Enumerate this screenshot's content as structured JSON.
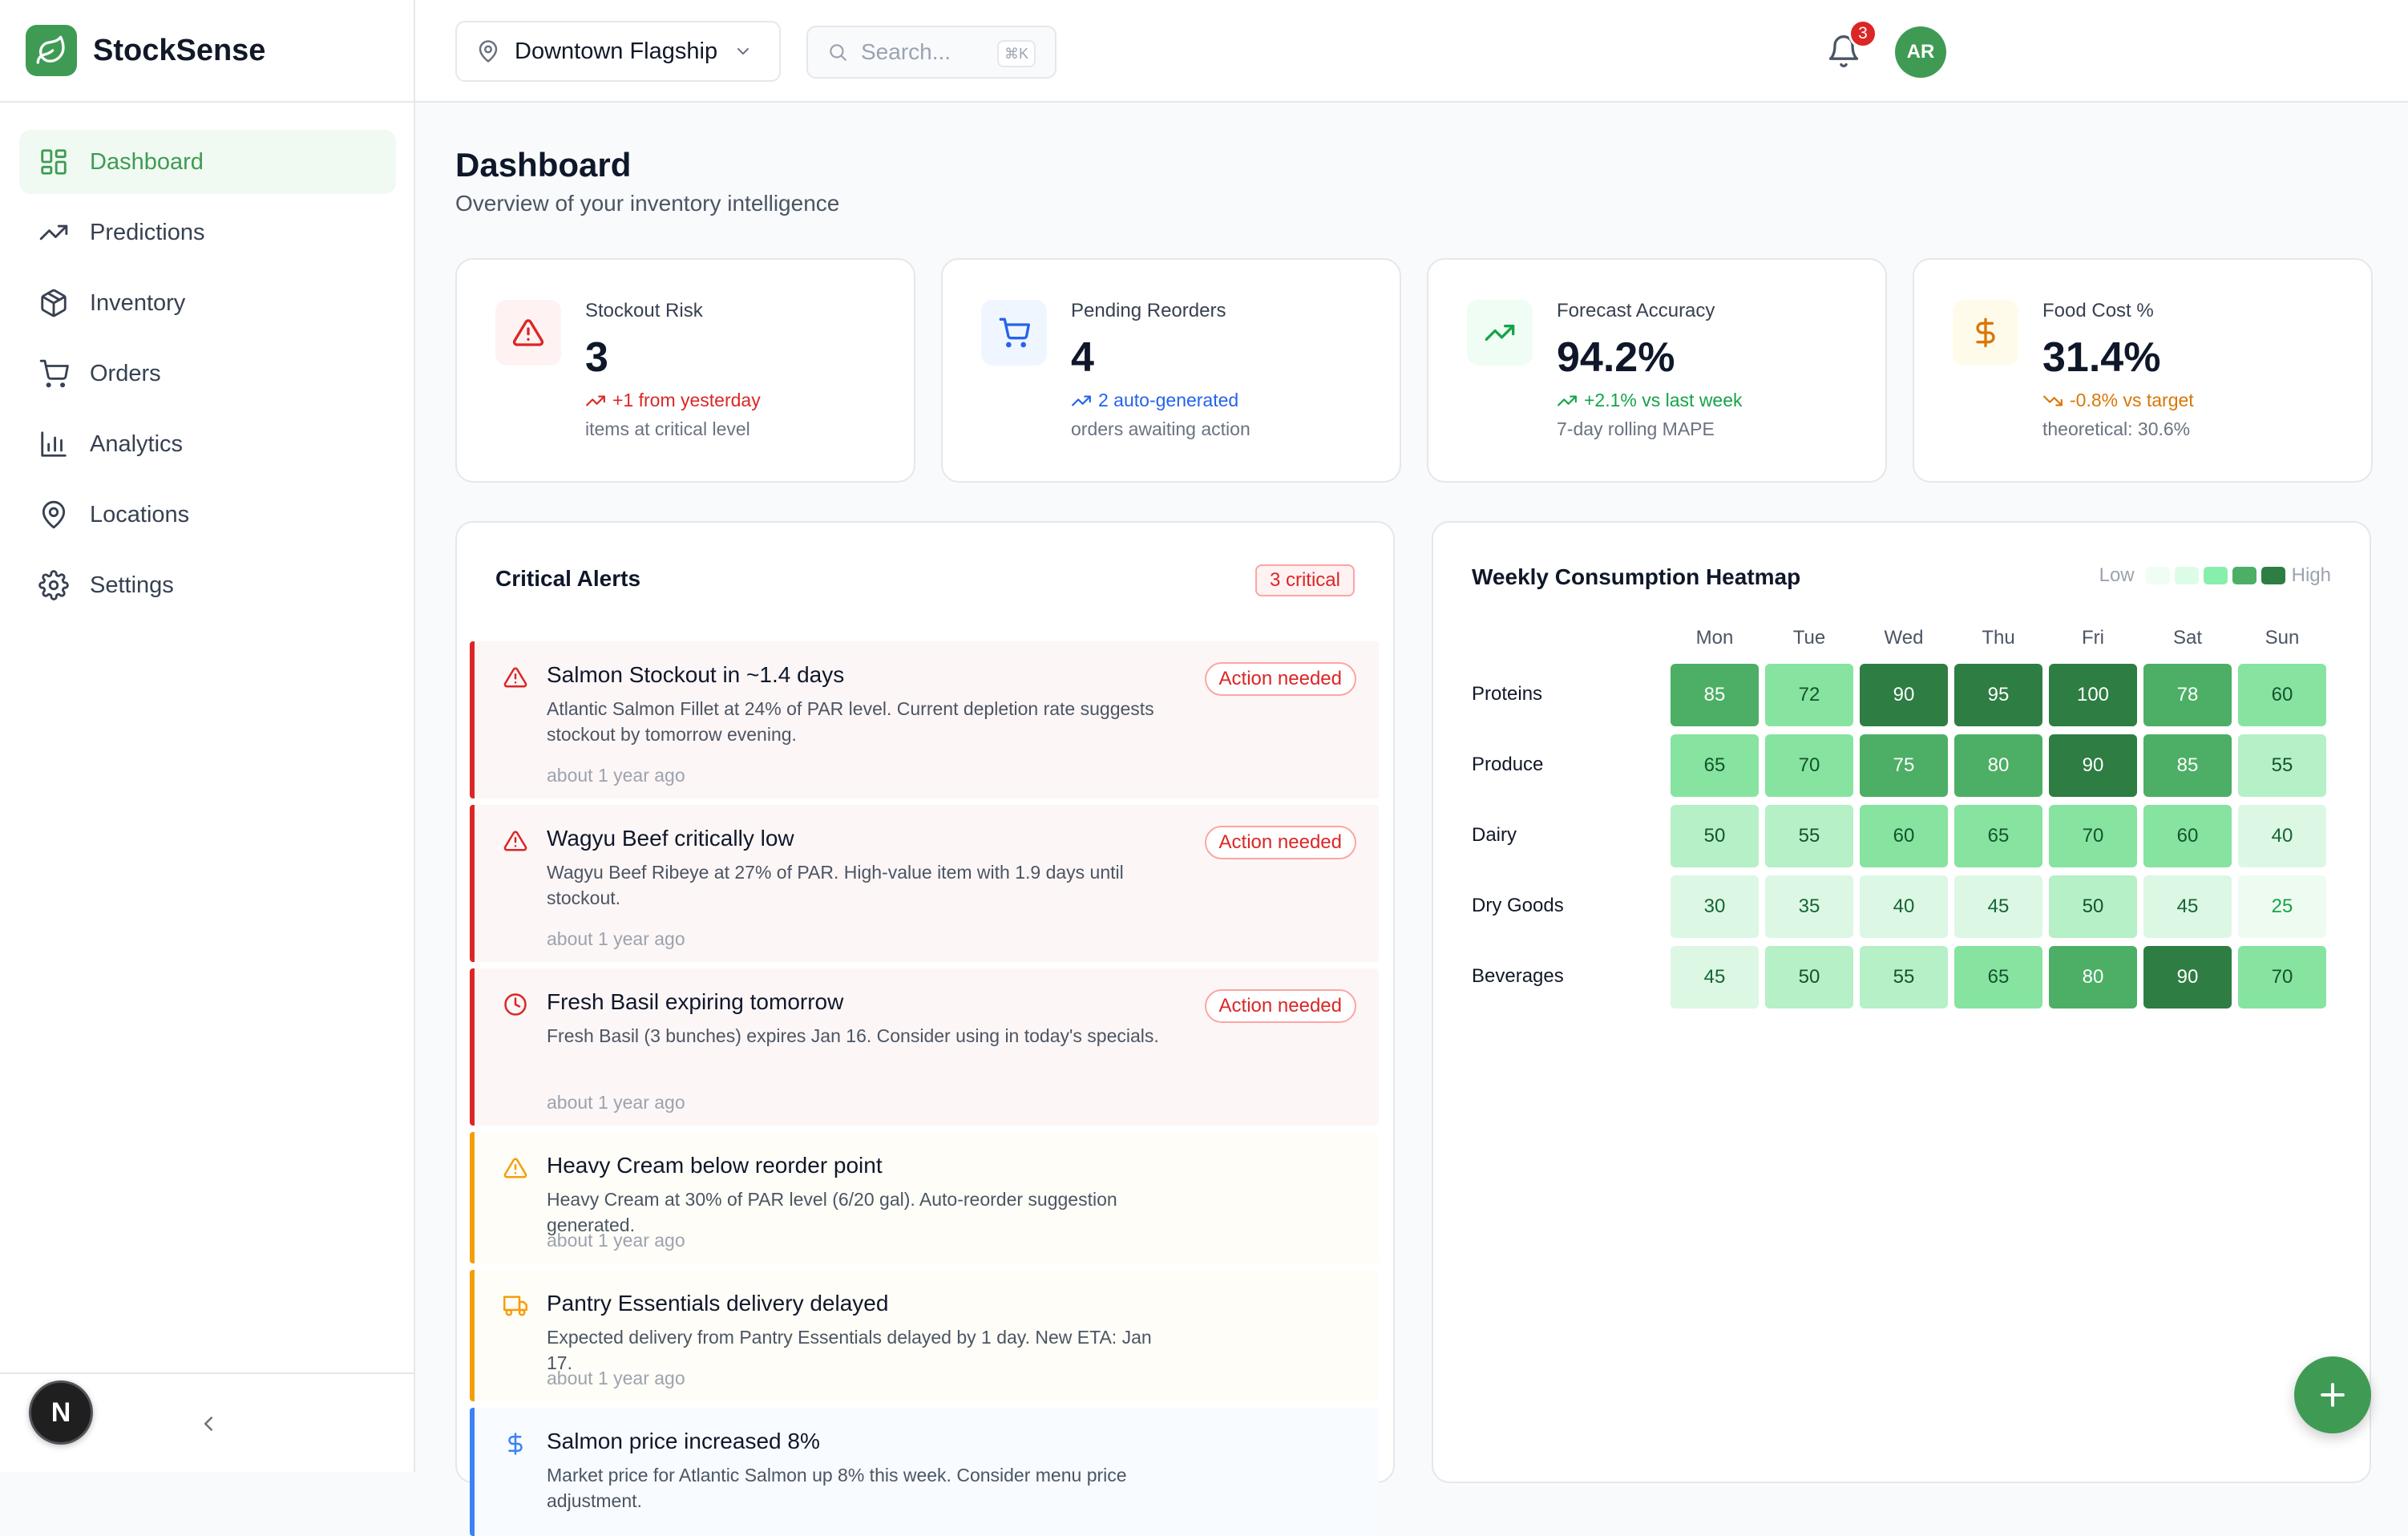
{
  "brand": {
    "name": "StockSense"
  },
  "sidebar": {
    "items": [
      {
        "label": "Dashboard",
        "icon": "dashboard-icon",
        "active": true
      },
      {
        "label": "Predictions",
        "icon": "trending-up-icon"
      },
      {
        "label": "Inventory",
        "icon": "package-icon"
      },
      {
        "label": "Orders",
        "icon": "cart-icon"
      },
      {
        "label": "Analytics",
        "icon": "bar-chart-icon"
      },
      {
        "label": "Locations",
        "icon": "map-pin-icon"
      },
      {
        "label": "Settings",
        "icon": "gear-icon"
      }
    ],
    "footer_badge": "N"
  },
  "topbar": {
    "location": "Downtown Flagship",
    "search_placeholder": "Search...",
    "search_shortcut": "⌘K",
    "notification_count": "3",
    "avatar_initials": "AR"
  },
  "page": {
    "title": "Dashboard",
    "subtitle": "Overview of your inventory intelligence"
  },
  "kpis": [
    {
      "label": "Stockout Risk",
      "value": "3",
      "trend": "+1 from yesterday",
      "note": "items at critical level",
      "icon": "warning-icon",
      "accent": "#dc2626",
      "bg": "#fef2f2"
    },
    {
      "label": "Pending Reorders",
      "value": "4",
      "trend": "2 auto-generated",
      "note": "orders awaiting action",
      "icon": "cart-icon",
      "accent": "#2563eb",
      "bg": "#eff6ff"
    },
    {
      "label": "Forecast Accuracy",
      "value": "94.2%",
      "trend": "+2.1% vs last week",
      "note": "7-day rolling MAPE",
      "icon": "trending-up-icon",
      "accent": "#16a34a",
      "bg": "#f0fdf4"
    },
    {
      "label": "Food Cost %",
      "value": "31.4%",
      "trend": "-0.8% vs target",
      "note": "theoretical: 30.6%",
      "icon": "dollar-icon",
      "accent": "#d97706",
      "bg": "#fffbeb"
    }
  ],
  "alerts": {
    "title": "Critical Alerts",
    "badge": "3 critical",
    "items": [
      {
        "title": "Salmon Stockout in ~1.4 days",
        "desc": "Atlantic Salmon Fillet at 24% of PAR level. Current depletion rate suggests stockout by tomorrow evening.",
        "time": "about 1 year ago",
        "badge": "Action needed",
        "icon": "warning-icon",
        "severity": "critical"
      },
      {
        "title": "Wagyu Beef critically low",
        "desc": "Wagyu Beef Ribeye at 27% of PAR. High-value item with 1.9 days until stockout.",
        "time": "about 1 year ago",
        "badge": "Action needed",
        "icon": "warning-icon",
        "severity": "critical"
      },
      {
        "title": "Fresh Basil expiring tomorrow",
        "desc": "Fresh Basil (3 bunches) expires Jan 16. Consider using in today's specials.",
        "time": "about 1 year ago",
        "badge": "Action needed",
        "icon": "clock-icon",
        "severity": "critical"
      },
      {
        "title": "Heavy Cream below reorder point",
        "desc": "Heavy Cream at 30% of PAR level (6/20 gal). Auto-reorder suggestion generated.",
        "time": "about 1 year ago",
        "badge": "",
        "icon": "warning-icon",
        "severity": "warning"
      },
      {
        "title": "Pantry Essentials delivery delayed",
        "desc": "Expected delivery from Pantry Essentials delayed by 1 day. New ETA: Jan 17.",
        "time": "about 1 year ago",
        "badge": "",
        "icon": "truck-icon",
        "severity": "warning"
      },
      {
        "title": "Salmon price increased 8%",
        "desc": "Market price for Atlantic Salmon up 8% this week. Consider menu price adjustment.",
        "time": "",
        "badge": "",
        "icon": "dollar-icon",
        "severity": "info"
      }
    ]
  },
  "heatmap": {
    "title": "Weekly Consumption Heatmap",
    "legend_low": "Low",
    "legend_high": "High",
    "days": [
      "Mon",
      "Tue",
      "Wed",
      "Thu",
      "Fri",
      "Sat",
      "Sun"
    ],
    "categories": [
      "Proteins",
      "Produce",
      "Dairy",
      "Dry Goods",
      "Beverages"
    ],
    "values": [
      [
        85,
        72,
        90,
        95,
        100,
        78,
        60
      ],
      [
        65,
        70,
        75,
        80,
        90,
        85,
        55
      ],
      [
        50,
        55,
        60,
        65,
        70,
        60,
        40
      ],
      [
        30,
        35,
        40,
        45,
        50,
        45,
        25
      ],
      [
        45,
        50,
        55,
        65,
        80,
        90,
        70
      ]
    ]
  },
  "colors": {
    "brand": "#3f9b54",
    "critical": "#dc2626",
    "warning": "#f59e0b",
    "info": "#3b82f6"
  }
}
